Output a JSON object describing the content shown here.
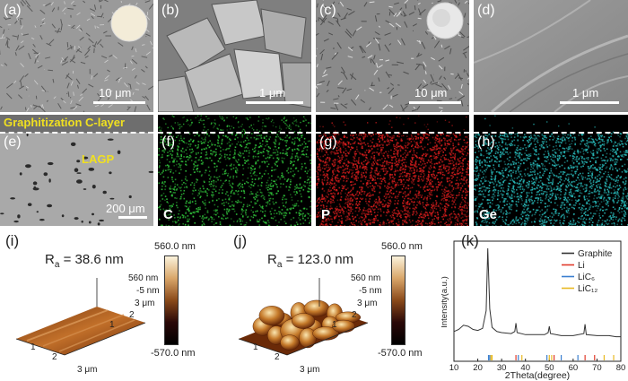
{
  "panels": {
    "a": {
      "label": "(a)",
      "scale": "10 μm"
    },
    "b": {
      "label": "(b)",
      "scale": "1 μm"
    },
    "c": {
      "label": "(c)",
      "scale": "10 μm"
    },
    "d": {
      "label": "(d)",
      "scale": "1 μm"
    },
    "e": {
      "label": "(e)",
      "scale": "200 μm",
      "title": "Graphitization C-layer",
      "annotation": "LAGP"
    },
    "f": {
      "label": "(f)",
      "element": "C",
      "color": "#2fbf3a"
    },
    "g": {
      "label": "(g)",
      "element": "P",
      "color": "#d01c1c"
    },
    "h": {
      "label": "(h)",
      "element": "Ge",
      "color": "#27b5b5"
    },
    "i": {
      "label": "(i)",
      "ra_prefix": "R",
      "ra_sub": "a",
      "ra_value": "= 38.6 nm",
      "z_top": "560 nm",
      "z_mid": "-5 nm",
      "y_tick": "3 μm",
      "y2": "2",
      "y1": "1",
      "x1": "1",
      "x2": "2",
      "x3": "3 μm",
      "colorbar_top": "560.0 nm",
      "colorbar_bottom": "-570.0 nm"
    },
    "j": {
      "label": "(j)",
      "ra_prefix": "R",
      "ra_sub": "a",
      "ra_value": "= 123.0 nm",
      "z_top": "560 nm",
      "z_mid": "-5 nm",
      "y_tick": "3 μm",
      "y2": "2",
      "y1": "1",
      "x1": "1",
      "x2": "2",
      "x3": "3 μm",
      "colorbar_top": "560.0 nm",
      "colorbar_bottom": "-570.0 nm"
    },
    "k": {
      "label": "(k)"
    }
  },
  "chart_data": {
    "type": "line",
    "title": "",
    "xlabel": "2Theta(degree)",
    "ylabel": "Intensity(a.u.)",
    "xlim": [
      10,
      80
    ],
    "xticks": [
      10,
      20,
      30,
      40,
      50,
      60,
      70,
      80
    ],
    "legend_position": "top-right",
    "series": [
      {
        "name": "Graphite",
        "color": "#333333",
        "x": [
          10,
          12,
          14,
          16,
          18,
          20,
          22,
          23.5,
          24.2,
          25,
          26,
          28,
          30,
          34,
          35.5,
          36,
          36.5,
          40,
          44,
          48,
          49.5,
          50,
          50.5,
          55,
          60,
          64.5,
          65,
          65.5,
          70,
          75,
          78,
          80
        ],
        "y": [
          0.2,
          0.22,
          0.26,
          0.25,
          0.22,
          0.21,
          0.23,
          0.4,
          1.0,
          0.42,
          0.24,
          0.2,
          0.19,
          0.18,
          0.2,
          0.28,
          0.19,
          0.17,
          0.17,
          0.17,
          0.19,
          0.25,
          0.18,
          0.16,
          0.16,
          0.18,
          0.27,
          0.17,
          0.16,
          0.16,
          0.15,
          0.15
        ]
      },
      {
        "name": "Li",
        "color": "#e03a2a",
        "sticks": [
          36,
          52,
          65,
          69
        ]
      },
      {
        "name": "LiC₆",
        "color": "#3b7fd0",
        "sticks": [
          24.5,
          25,
          37,
          49,
          55,
          62
        ]
      },
      {
        "name": "LiC₁₂",
        "color": "#e8b923",
        "sticks": [
          25.5,
          26,
          38.5,
          50,
          51,
          73,
          77
        ]
      }
    ]
  }
}
